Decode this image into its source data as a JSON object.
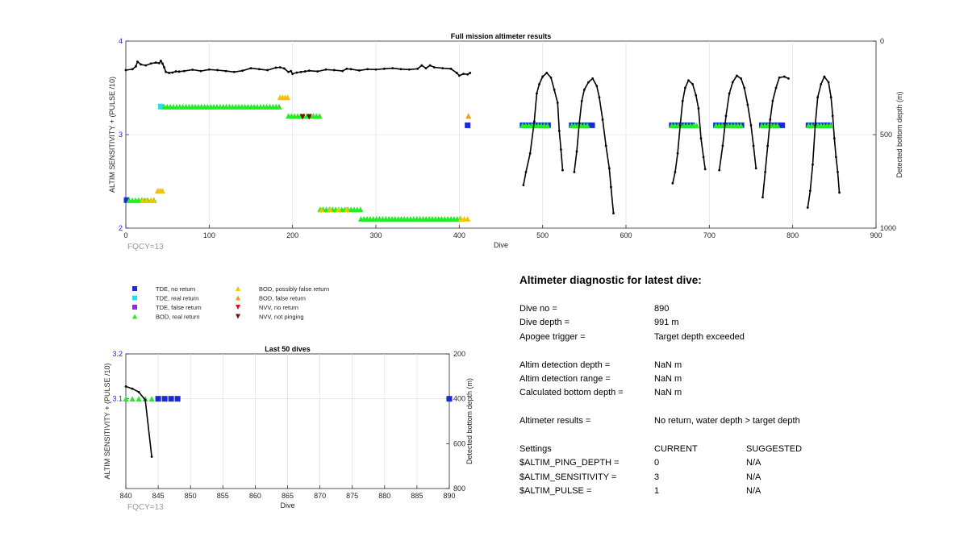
{
  "colors": {
    "tde_no_return": "#1a2bd6",
    "tde_real_return": "#22e0f0",
    "tde_false_return": "#8a2be2",
    "bod_real_return": "#20ee20",
    "bod_possibly_false": "#f5c400",
    "bod_false": "#f39a1a",
    "nvv_no_return": "#d11414",
    "nvv_not_pinging": "#7a0e0e",
    "bottom_depth": "#000000",
    "axis_left": "#1f1fbf"
  },
  "legend": [
    {
      "label": "TDE, no return",
      "marker": "square",
      "color_key": "tde_no_return"
    },
    {
      "label": "TDE, real return",
      "marker": "square",
      "color_key": "tde_real_return"
    },
    {
      "label": "TDE, false return",
      "marker": "square",
      "color_key": "tde_false_return"
    },
    {
      "label": "BOD, real return",
      "marker": "triangle-up",
      "color_key": "bod_real_return"
    },
    {
      "label": "BOD, possibly false return",
      "marker": "triangle-up",
      "color_key": "bod_possibly_false"
    },
    {
      "label": "BOD, false return",
      "marker": "triangle-up",
      "color_key": "bod_false"
    },
    {
      "label": "NVV, no return",
      "marker": "triangle-down",
      "color_key": "nvv_no_return"
    },
    {
      "label": "NVV, not pinging",
      "marker": "triangle-down",
      "color_key": "nvv_not_pinging"
    }
  ],
  "chart_data": [
    {
      "type": "scatter",
      "title": "Full mission altimeter results",
      "xlabel": "Dive",
      "ylabel": "ALTIM SENSITIVITY + (PULSE /10)",
      "y2label": "Detected bottom depth (m)",
      "xlim": [
        0,
        900
      ],
      "ylim": [
        2,
        4
      ],
      "y2lim": [
        0,
        1000
      ],
      "y2_reversed": true,
      "xticks": [
        "0",
        "100",
        "200",
        "300",
        "400",
        "500",
        "600",
        "700",
        "800",
        "900"
      ],
      "yticks": [
        "2",
        "3",
        "4"
      ],
      "y2ticks": [
        "0",
        "500",
        "1000"
      ],
      "grid": true,
      "annotation": "FQCY=13",
      "series": [
        {
          "name": "TDE, no return",
          "ranges": [
            [
              1,
              2,
              2.3
            ],
            [
              410,
              411,
              3.1
            ],
            [
              476,
              512,
              3.1
            ],
            [
              535,
              562,
              3.1
            ],
            [
              655,
              685,
              3.1
            ],
            [
              708,
              741,
              3.1
            ],
            [
              763,
              793,
              3.1
            ],
            [
              819,
              847,
              3.1
            ]
          ]
        },
        {
          "name": "TDE, real return",
          "ranges": [
            [
              42,
              43,
              3.3
            ]
          ]
        },
        {
          "name": "BOD, real return",
          "ranges": [
            [
              4,
              36,
              2.3
            ],
            [
              46,
              185,
              3.3
            ],
            [
              195,
              233,
              3.2
            ],
            [
              233,
              283,
              2.2
            ],
            [
              282,
              403,
              2.1
            ],
            [
              476,
              508,
              3.1
            ],
            [
              535,
              557,
              3.1
            ],
            [
              655,
              685,
              3.1
            ],
            [
              708,
              741,
              3.1
            ],
            [
              763,
              783,
              3.1
            ],
            [
              819,
              847,
              3.1
            ]
          ]
        },
        {
          "name": "BOD, possibly false return",
          "points": [
            [
              185,
              3.4
            ],
            [
              188,
              3.4
            ],
            [
              191,
              3.4
            ],
            [
              194,
              3.4
            ],
            [
              38,
              2.4
            ],
            [
              40,
              2.4
            ],
            [
              42,
              2.4
            ],
            [
              44,
              2.4
            ],
            [
              20,
              2.3
            ],
            [
              25,
              2.3
            ],
            [
              30,
              2.3
            ],
            [
              33,
              2.3
            ],
            [
              235,
              2.2
            ],
            [
              245,
              2.2
            ],
            [
              255,
              2.2
            ],
            [
              265,
              2.2
            ],
            [
              402,
              2.1
            ],
            [
              406,
              2.1
            ],
            [
              410,
              2.1
            ]
          ]
        },
        {
          "name": "BOD, false return",
          "points": [
            [
              411,
              3.2
            ]
          ]
        },
        {
          "name": "NVV, not pinging",
          "points": [
            [
              212,
              3.19
            ],
            [
              220,
              3.19
            ]
          ]
        },
        {
          "name": "bottom depth (m)",
          "axis": "y2",
          "segments": [
            [
              [
                0,
                155
              ],
              [
                8,
                150
              ],
              [
                12,
                135
              ],
              [
                14,
                110
              ],
              [
                18,
                125
              ],
              [
                24,
                130
              ],
              [
                30,
                120
              ],
              [
                36,
                115
              ],
              [
                40,
                118
              ],
              [
                42,
                105
              ],
              [
                44,
                120
              ],
              [
                46,
                140
              ],
              [
                48,
                165
              ],
              [
                52,
                170
              ],
              [
                56,
                168
              ],
              [
                60,
                162
              ],
              [
                64,
                163
              ],
              [
                70,
                160
              ],
              [
                80,
                153
              ],
              [
                90,
                160
              ],
              [
                100,
                152
              ],
              [
                110,
                155
              ],
              [
                120,
                160
              ],
              [
                130,
                165
              ],
              [
                140,
                158
              ],
              [
                150,
                145
              ],
              [
                160,
                150
              ],
              [
                170,
                155
              ],
              [
                180,
                142
              ],
              [
                185,
                140
              ],
              [
                190,
                146
              ],
              [
                195,
                165
              ],
              [
                198,
                160
              ],
              [
                200,
                175
              ],
              [
                205,
                168
              ],
              [
                210,
                165
              ],
              [
                215,
                162
              ],
              [
                220,
                158
              ],
              [
                230,
                162
              ],
              [
                240,
                152
              ],
              [
                250,
                155
              ],
              [
                260,
                160
              ],
              [
                265,
                148
              ],
              [
                270,
                150
              ],
              [
                280,
                157
              ],
              [
                290,
                150
              ],
              [
                300,
                152
              ],
              [
                310,
                148
              ],
              [
                320,
                145
              ],
              [
                330,
                150
              ],
              [
                340,
                152
              ],
              [
                350,
                148
              ],
              [
                355,
                130
              ],
              [
                360,
                145
              ],
              [
                365,
                130
              ],
              [
                370,
                140
              ],
              [
                380,
                145
              ],
              [
                390,
                148
              ],
              [
                397,
                170
              ],
              [
                400,
                185
              ],
              [
                405,
                175
              ],
              [
                410,
                178
              ],
              [
                413,
                170
              ]
            ],
            [
              [
                477,
                770
              ],
              [
                480,
                700
              ],
              [
                485,
                600
              ],
              [
                490,
                430
              ],
              [
                493,
                280
              ],
              [
                496,
                230
              ],
              [
                500,
                190
              ],
              [
                505,
                170
              ],
              [
                510,
                195
              ],
              [
                514,
                260
              ],
              [
                518,
                330
              ],
              [
                520,
                480
              ],
              [
                522,
                580
              ],
              [
                524,
                690
              ]
            ],
            [
              [
                538,
                700
              ],
              [
                541,
                590
              ],
              [
                544,
                440
              ],
              [
                547,
                320
              ],
              [
                550,
                260
              ],
              [
                555,
                220
              ],
              [
                560,
                200
              ],
              [
                565,
                240
              ],
              [
                568,
                300
              ],
              [
                572,
                420
              ],
              [
                576,
                560
              ],
              [
                580,
                680
              ],
              [
                582,
                780
              ],
              [
                585,
                920
              ]
            ],
            [
              [
                656,
                760
              ],
              [
                659,
                700
              ],
              [
                662,
                600
              ],
              [
                665,
                450
              ],
              [
                668,
                320
              ],
              [
                671,
                250
              ],
              [
                675,
                210
              ],
              [
                680,
                230
              ],
              [
                684,
                290
              ],
              [
                687,
                360
              ],
              [
                690,
                520
              ],
              [
                693,
                620
              ],
              [
                695,
                685
              ]
            ],
            [
              [
                712,
                690
              ],
              [
                716,
                560
              ],
              [
                720,
                400
              ],
              [
                724,
                280
              ],
              [
                728,
                220
              ],
              [
                733,
                185
              ],
              [
                738,
                200
              ],
              [
                742,
                250
              ],
              [
                746,
                340
              ],
              [
                750,
                450
              ],
              [
                753,
                560
              ],
              [
                756,
                680
              ]
            ],
            [
              [
                764,
                835
              ],
              [
                767,
                700
              ],
              [
                770,
                560
              ],
              [
                773,
                420
              ],
              [
                776,
                320
              ],
              [
                780,
                250
              ],
              [
                784,
                195
              ],
              [
                790,
                190
              ],
              [
                795,
                200
              ]
            ],
            [
              [
                818,
                890
              ],
              [
                821,
                800
              ],
              [
                824,
                660
              ],
              [
                827,
                450
              ],
              [
                830,
                300
              ],
              [
                834,
                230
              ],
              [
                838,
                190
              ],
              [
                843,
                220
              ],
              [
                846,
                300
              ],
              [
                848,
                400
              ],
              [
                850,
                520
              ],
              [
                852,
                620
              ],
              [
                854,
                700
              ],
              [
                856,
                810
              ]
            ]
          ]
        }
      ]
    },
    {
      "type": "scatter",
      "title": "Last 50 dives",
      "xlabel": "Dive",
      "ylabel": "ALTIM SENSITIVITY + (PULSE /10)",
      "y2label": "Detected bottom depth (m)",
      "xlim": [
        840,
        890
      ],
      "ylim": [
        2.9,
        3.2
      ],
      "y2lim": [
        200,
        800
      ],
      "y2_reversed": true,
      "xticks": [
        "840",
        "845",
        "850",
        "855",
        "860",
        "865",
        "870",
        "875",
        "880",
        "885",
        "890"
      ],
      "yticks": [
        "3.1",
        "3.2"
      ],
      "y2ticks": [
        "200",
        "400",
        "600",
        "800"
      ],
      "grid": true,
      "annotation": "FQCY=13",
      "series": [
        {
          "name": "BOD, real return",
          "points": [
            [
              840,
              3.1
            ],
            [
              841,
              3.1
            ],
            [
              842,
              3.1
            ],
            [
              843,
              3.1
            ],
            [
              844,
              3.1
            ]
          ]
        },
        {
          "name": "TDE, no return",
          "points": [
            [
              845,
              3.1
            ],
            [
              846,
              3.1
            ],
            [
              847,
              3.1
            ],
            [
              848,
              3.1
            ],
            [
              890,
              3.1
            ]
          ]
        },
        {
          "name": "bottom depth (m)",
          "axis": "y2",
          "points": [
            [
              840,
              345
            ],
            [
              841,
              355
            ],
            [
              842,
              370
            ],
            [
              843,
              405
            ],
            [
              844,
              658
            ]
          ]
        }
      ]
    }
  ],
  "diagnostic": {
    "title": "Altimeter diagnostic for latest dive:",
    "dive_no_label": "Dive no =",
    "dive_no": "890",
    "dive_depth_label": "Dive depth =",
    "dive_depth": "991 m",
    "apogee_label": "Apogee trigger =",
    "apogee": "Target depth exceeded",
    "altim_det_depth_label": "Altim detection depth =",
    "altim_det_depth": "NaN m",
    "altim_det_range_label": "Altim detection range =",
    "altim_det_range": "NaN m",
    "calc_bottom_label": "Calculated bottom depth =",
    "calc_bottom": "NaN m",
    "results_label": "Altimeter results =",
    "results": "No return, water depth > target depth",
    "settings_label": "Settings",
    "current_label": "CURRENT",
    "suggested_label": "SUGGESTED",
    "settings": [
      {
        "name": "$ALTIM_PING_DEPTH =",
        "current": "0",
        "suggested": "N/A"
      },
      {
        "name": "$ALTIM_SENSITIVITY =",
        "current": "3",
        "suggested": "N/A"
      },
      {
        "name": "$ALTIM_PULSE =",
        "current": "1",
        "suggested": "N/A"
      }
    ]
  }
}
